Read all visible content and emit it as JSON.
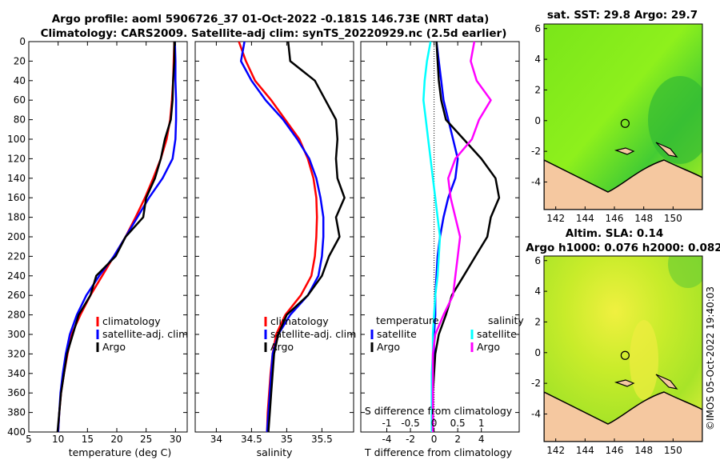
{
  "title_line1": "Argo profile: aoml 5906726_37 01-Oct-2022 -0.181S 146.73E (NRT data)",
  "title_line2": "Climatology: CARS2009. Satellite-adj clim: synTS_20220929.nc (2.5d earlier)",
  "credit": "©IMOS 05-Oct-2022 19:40:03",
  "colors": {
    "climatology": "#ff0000",
    "satellite": "#0000ff",
    "argo": "#000000",
    "salinity_sat": "#00ffff",
    "salinity_clim": "#ff00ff",
    "land": "#f5c8a0"
  },
  "chart_data": [
    {
      "type": "line",
      "id": "temperature",
      "xlabel": "temperature (deg C)",
      "xlim": [
        5,
        32
      ],
      "ylim": [
        400,
        0
      ],
      "xticks": [
        "5",
        "10",
        "15",
        "20",
        "25",
        "30"
      ],
      "xtick_values": [
        5,
        10,
        15,
        20,
        25,
        30
      ],
      "yticks": [
        "0",
        "20",
        "40",
        "60",
        "80",
        "100",
        "120",
        "140",
        "160",
        "180",
        "200",
        "220",
        "240",
        "260",
        "280",
        "300",
        "320",
        "340",
        "360",
        "380",
        "400"
      ],
      "ytick_values": [
        0,
        20,
        40,
        60,
        80,
        100,
        120,
        140,
        160,
        180,
        200,
        220,
        240,
        260,
        280,
        300,
        320,
        340,
        360,
        380,
        400
      ],
      "legend": [
        "climatology",
        "satellite-adj. clim",
        "Argo"
      ],
      "series": [
        {
          "name": "climatology",
          "color": "#ff0000",
          "x": [
            29.8,
            29.7,
            29.6,
            29.4,
            29.1,
            28.5,
            27.5,
            26.2,
            24.8,
            23.2,
            21.5,
            19.5,
            17.5,
            15.5,
            13.8,
            12.3,
            11.6,
            11.0,
            10.5,
            10.2,
            10.0
          ],
          "y": [
            0,
            20,
            40,
            60,
            80,
            100,
            120,
            140,
            160,
            180,
            200,
            220,
            240,
            260,
            280,
            300,
            320,
            340,
            360,
            380,
            400
          ]
        },
        {
          "name": "satellite-adj. clim",
          "color": "#0000ff",
          "x": [
            29.9,
            30.0,
            30.0,
            30.1,
            30.1,
            30.0,
            29.5,
            27.8,
            25.5,
            23.5,
            21.5,
            19.5,
            17.0,
            14.8,
            13.2,
            12.0,
            11.3,
            10.8,
            10.4,
            10.2,
            10.0
          ],
          "y": [
            0,
            20,
            40,
            60,
            80,
            100,
            120,
            140,
            160,
            180,
            200,
            220,
            240,
            260,
            280,
            300,
            320,
            340,
            360,
            380,
            400
          ]
        },
        {
          "name": "Argo",
          "color": "#000000",
          "x": [
            29.8,
            29.8,
            29.6,
            29.5,
            29.2,
            28.2,
            27.5,
            26.5,
            25.0,
            24.5,
            21.5,
            19.8,
            16.5,
            15.5,
            13.5,
            12.5,
            11.5,
            11.0,
            10.5,
            10.2,
            9.9
          ],
          "y": [
            0,
            20,
            40,
            60,
            80,
            100,
            120,
            140,
            160,
            180,
            200,
            220,
            240,
            260,
            280,
            300,
            320,
            340,
            360,
            380,
            400
          ]
        }
      ]
    },
    {
      "type": "line",
      "id": "salinity",
      "xlabel": "salinity",
      "xlim": [
        33.7,
        35.95
      ],
      "ylim": [
        400,
        0
      ],
      "xticks": [
        "34",
        "34.5",
        "35",
        "35.5"
      ],
      "xtick_values": [
        34,
        34.5,
        35,
        35.5
      ],
      "legend": [
        "climatology",
        "satellite-adj. clim",
        "Argo"
      ],
      "series": [
        {
          "name": "climatology",
          "color": "#ff0000",
          "x": [
            34.32,
            34.42,
            34.55,
            34.78,
            34.98,
            35.18,
            35.3,
            35.38,
            35.42,
            35.43,
            35.42,
            35.4,
            35.35,
            35.2,
            34.98,
            34.85,
            34.8,
            34.77,
            34.75,
            34.73,
            34.72
          ],
          "y": [
            0,
            20,
            40,
            60,
            80,
            100,
            120,
            140,
            160,
            180,
            200,
            220,
            240,
            260,
            280,
            300,
            320,
            340,
            360,
            380,
            400
          ]
        },
        {
          "name": "satellite-adj. clim",
          "color": "#0000ff",
          "x": [
            34.4,
            34.35,
            34.5,
            34.7,
            34.95,
            35.15,
            35.32,
            35.42,
            35.48,
            35.52,
            35.52,
            35.5,
            35.45,
            35.3,
            35.05,
            34.88,
            34.8,
            34.78,
            34.76,
            34.74,
            34.72
          ],
          "y": [
            0,
            20,
            40,
            60,
            80,
            100,
            120,
            140,
            160,
            180,
            200,
            220,
            240,
            260,
            280,
            300,
            320,
            340,
            360,
            380,
            400
          ]
        },
        {
          "name": "Argo",
          "color": "#000000",
          "x": [
            35.02,
            35.05,
            35.4,
            35.55,
            35.7,
            35.72,
            35.7,
            35.72,
            35.82,
            35.7,
            35.75,
            35.6,
            35.5,
            35.3,
            35.0,
            34.88,
            34.82,
            34.8,
            34.78,
            34.76,
            34.74
          ],
          "y": [
            0,
            20,
            40,
            60,
            80,
            100,
            120,
            140,
            160,
            180,
            200,
            220,
            240,
            260,
            280,
            300,
            320,
            340,
            360,
            380,
            400
          ]
        }
      ]
    },
    {
      "type": "line",
      "id": "difference",
      "xlabel": "T difference from climatology",
      "xlabel2": "S difference from climatology",
      "xlim": [
        -6.2,
        7.2
      ],
      "ylim": [
        400,
        0
      ],
      "xticks": [
        "-4",
        "-2",
        "0",
        "2",
        "4"
      ],
      "xtick_values": [
        -4,
        -2,
        0,
        2,
        4
      ],
      "xticks2": [
        "-1",
        "-0.5",
        "0",
        "0.5",
        "1"
      ],
      "xtick2_values": [
        -4,
        -2,
        0,
        2,
        4
      ],
      "legend_t_title": "temperature",
      "legend_s_title": "salinity",
      "legend_t": [
        "satellite",
        "Argo"
      ],
      "legend_s": [
        "satellite",
        "Argo"
      ],
      "series": [
        {
          "name": "T satellite",
          "color": "#0000ff",
          "x": [
            0.2,
            0.4,
            0.6,
            0.8,
            1.2,
            1.6,
            2.0,
            1.8,
            1.2,
            0.8,
            0.5,
            0.3,
            0.2,
            0.1,
            0.1,
            0.0,
            0.0,
            -0.1,
            -0.1,
            -0.1,
            -0.1
          ],
          "y": [
            0,
            20,
            40,
            60,
            80,
            100,
            120,
            140,
            160,
            180,
            200,
            220,
            240,
            260,
            280,
            300,
            320,
            340,
            360,
            380,
            400
          ]
        },
        {
          "name": "T Argo",
          "color": "#000000",
          "x": [
            0.2,
            0.3,
            0.4,
            0.6,
            1.0,
            2.5,
            4.0,
            5.2,
            5.5,
            4.8,
            4.5,
            3.5,
            2.5,
            1.5,
            1.0,
            0.4,
            0.1,
            0.0,
            -0.1,
            -0.1,
            -0.1
          ],
          "y": [
            0,
            20,
            40,
            60,
            80,
            100,
            120,
            140,
            160,
            180,
            200,
            220,
            240,
            260,
            280,
            300,
            320,
            340,
            360,
            380,
            400
          ]
        },
        {
          "name": "S satellite",
          "color": "#00ffff",
          "x": [
            -0.3,
            -0.6,
            -0.8,
            -0.9,
            -0.7,
            -0.5,
            -0.3,
            -0.1,
            0.1,
            0.3,
            0.5,
            0.4,
            0.3,
            0.1,
            0.0,
            -0.1,
            -0.1,
            -0.2,
            -0.2,
            -0.2,
            -0.2
          ],
          "y": [
            0,
            20,
            40,
            60,
            80,
            100,
            120,
            140,
            160,
            180,
            200,
            220,
            240,
            260,
            280,
            300,
            320,
            340,
            360,
            380,
            400
          ]
        },
        {
          "name": "S Argo",
          "color": "#ff00ff",
          "x": [
            3.4,
            3.1,
            3.6,
            4.8,
            3.8,
            3.2,
            1.8,
            1.2,
            1.4,
            1.8,
            2.2,
            2.0,
            1.8,
            1.6,
            0.8,
            0.1,
            -0.1,
            -0.1,
            -0.1,
            -0.1,
            -0.1
          ],
          "y": [
            0,
            20,
            40,
            60,
            80,
            100,
            120,
            140,
            160,
            180,
            200,
            220,
            240,
            260,
            280,
            300,
            320,
            340,
            360,
            380,
            400
          ]
        }
      ]
    },
    {
      "type": "heatmap",
      "id": "sst_map",
      "title": "sat. SST: 29.8 Argo: 29.7",
      "xticks": [
        "142",
        "144",
        "146",
        "148",
        "150"
      ],
      "yticks": [
        "6",
        "4",
        "2",
        "0",
        "-2",
        "-4"
      ],
      "xlim": [
        141.2,
        152.0
      ],
      "ylim": [
        -5.8,
        6.3
      ],
      "marker_lon": 146.73,
      "marker_lat": -0.181
    },
    {
      "type": "heatmap",
      "id": "sla_map",
      "title": "Altim. SLA: 0.14",
      "subtitle": "Argo h1000: 0.076 h2000: 0.082",
      "xticks": [
        "142",
        "144",
        "146",
        "148",
        "150"
      ],
      "yticks": [
        "6",
        "4",
        "2",
        "0",
        "-2",
        "-4"
      ],
      "xlim": [
        141.2,
        152.0
      ],
      "ylim": [
        -5.8,
        6.3
      ],
      "marker_lon": 146.73,
      "marker_lat": -0.181
    }
  ]
}
